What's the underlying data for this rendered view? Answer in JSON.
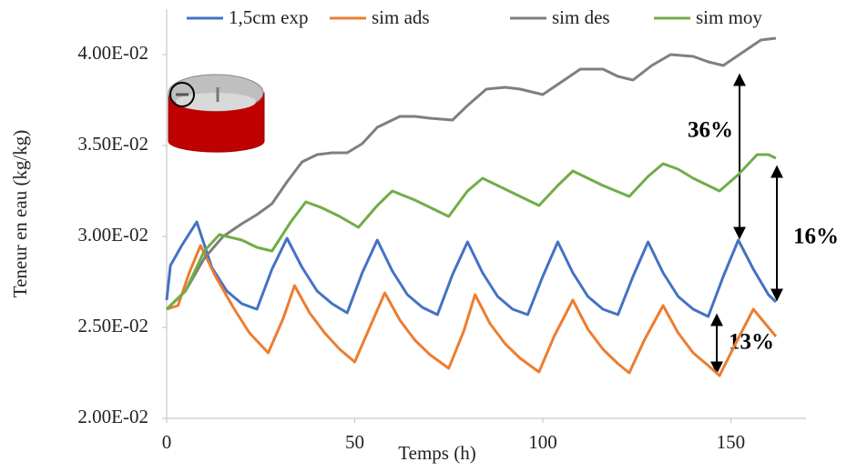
{
  "chart_data": {
    "type": "line",
    "x_label": "Temps (h)",
    "y_label": "Teneur en eau (kg/kg)",
    "xlim": [
      0,
      170
    ],
    "ylim": [
      0.02,
      0.042
    ],
    "xticks": [
      0,
      50,
      100,
      150
    ],
    "yticks": [
      {
        "value": 0.02,
        "label": "2.00E-02"
      },
      {
        "value": 0.025,
        "label": "2.50E-02"
      },
      {
        "value": 0.03,
        "label": "3.00E-02"
      },
      {
        "value": 0.035,
        "label": "3.50E-02"
      },
      {
        "value": 0.04,
        "label": "4.00E-02"
      }
    ],
    "grid": false,
    "legend": "top",
    "annotations": [
      "36%",
      "16%",
      "13%"
    ],
    "series": [
      {
        "name": "1,5cm exp",
        "color": "#4472c4",
        "x": [
          0,
          1,
          4,
          8,
          12,
          16,
          20,
          24,
          28,
          32,
          36,
          40,
          44,
          48,
          52,
          56,
          60,
          64,
          68,
          72,
          76,
          80,
          84,
          88,
          92,
          96,
          100,
          104,
          108,
          112,
          116,
          120,
          124,
          128,
          132,
          136,
          140,
          144,
          148,
          152,
          156,
          160,
          162
        ],
        "values": [
          0.0265,
          0.0284,
          0.0295,
          0.0308,
          0.0283,
          0.027,
          0.0263,
          0.026,
          0.0282,
          0.0299,
          0.0283,
          0.027,
          0.0263,
          0.0258,
          0.028,
          0.0298,
          0.0281,
          0.0268,
          0.0261,
          0.0257,
          0.0279,
          0.0297,
          0.028,
          0.0267,
          0.026,
          0.0257,
          0.0278,
          0.0297,
          0.028,
          0.0267,
          0.026,
          0.0257,
          0.0278,
          0.0297,
          0.028,
          0.0267,
          0.026,
          0.0256,
          0.0278,
          0.0298,
          0.0282,
          0.0268,
          0.0264
        ]
      },
      {
        "name": "sim ads",
        "color": "#ed7d31",
        "x": [
          0,
          3,
          6,
          9,
          13,
          18,
          22,
          27,
          31,
          34,
          38,
          42,
          46,
          50,
          54,
          58,
          62,
          66,
          70,
          75,
          79,
          82,
          86,
          90,
          94,
          99,
          103,
          108,
          112,
          116,
          120,
          123,
          127,
          132,
          136,
          140,
          144,
          147,
          151,
          156,
          160,
          162
        ],
        "values": [
          0.026,
          0.0262,
          0.028,
          0.0295,
          0.0278,
          0.026,
          0.0247,
          0.0236,
          0.0255,
          0.0273,
          0.0258,
          0.0247,
          0.0238,
          0.0231,
          0.025,
          0.0269,
          0.0254,
          0.0243,
          0.0235,
          0.02275,
          0.0248,
          0.0268,
          0.0252,
          0.0241,
          0.0233,
          0.02255,
          0.0245,
          0.0265,
          0.0249,
          0.0238,
          0.023,
          0.0225,
          0.0243,
          0.0262,
          0.0247,
          0.0236,
          0.0229,
          0.02235,
          0.024,
          0.026,
          0.025,
          0.0245
        ]
      },
      {
        "name": "sim des",
        "color": "#7f7f7f",
        "x": [
          0,
          5,
          10,
          15,
          20,
          24,
          28,
          32,
          36,
          40,
          44,
          48,
          52,
          56,
          62,
          66,
          70,
          76,
          80,
          85,
          90,
          94,
          100,
          105,
          110,
          116,
          120,
          124,
          129,
          134,
          140,
          144,
          148,
          153,
          158,
          162
        ],
        "values": [
          0.026,
          0.027,
          0.0288,
          0.03,
          0.0307,
          0.0312,
          0.0318,
          0.033,
          0.0341,
          0.0345,
          0.0346,
          0.0346,
          0.0351,
          0.036,
          0.0366,
          0.0366,
          0.0365,
          0.0364,
          0.0372,
          0.0381,
          0.0382,
          0.0381,
          0.0378,
          0.0385,
          0.0392,
          0.0392,
          0.0388,
          0.0386,
          0.0394,
          0.04,
          0.0399,
          0.0396,
          0.0394,
          0.0401,
          0.0408,
          0.0409
        ]
      },
      {
        "name": "sim moy",
        "color": "#70ad47",
        "x": [
          0,
          5,
          10,
          14,
          20,
          24,
          28,
          33,
          37,
          41,
          46,
          51,
          56,
          60,
          66,
          70,
          75,
          80,
          84,
          88,
          92,
          99,
          104,
          108,
          112,
          116,
          123,
          128,
          132,
          136,
          140,
          147,
          152,
          157,
          160,
          162
        ],
        "values": [
          0.026,
          0.027,
          0.0292,
          0.0301,
          0.0298,
          0.0294,
          0.0292,
          0.0308,
          0.0319,
          0.0316,
          0.0311,
          0.0305,
          0.0317,
          0.0325,
          0.032,
          0.0316,
          0.0311,
          0.0325,
          0.0332,
          0.0328,
          0.0324,
          0.0317,
          0.0328,
          0.0336,
          0.0332,
          0.0328,
          0.0322,
          0.0333,
          0.034,
          0.0337,
          0.0332,
          0.0325,
          0.0334,
          0.0345,
          0.0345,
          0.0343
        ]
      }
    ]
  }
}
